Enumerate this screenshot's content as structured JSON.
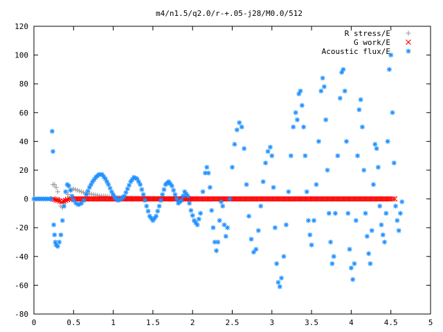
{
  "chart_data": {
    "type": "scatter",
    "title": "m4/n1.5/q2.0/r-+.05-j28/M0.0/512",
    "xlabel": "",
    "ylabel": "",
    "xlim": [
      0,
      5
    ],
    "ylim": [
      -80,
      120
    ],
    "x_ticks": [
      "0",
      "0.5",
      "1",
      "1.5",
      "2",
      "2.5",
      "3",
      "3.5",
      "4",
      "4.5",
      "5"
    ],
    "y_ticks": [
      "-80",
      "-60",
      "-40",
      "-20",
      "0",
      "20",
      "40",
      "60",
      "80",
      "100",
      "120"
    ],
    "grid": false,
    "legend_position": "top-right",
    "series": [
      {
        "name": "R stress/E",
        "marker": "+",
        "color": "#a0a0a0",
        "points": [
          [
            0.24,
            10
          ],
          [
            0.26,
            10
          ],
          [
            0.28,
            8
          ],
          [
            0.3,
            5
          ],
          [
            0.32,
            0
          ],
          [
            0.34,
            -5
          ],
          [
            0.36,
            -6
          ],
          [
            0.38,
            -3
          ],
          [
            0.4,
            0
          ],
          [
            0.43,
            3
          ],
          [
            0.46,
            6
          ],
          [
            0.5,
            7
          ],
          [
            0.55,
            6
          ],
          [
            0.6,
            5
          ],
          [
            0.65,
            4
          ],
          [
            0.7,
            3.5
          ],
          [
            0.75,
            3
          ],
          [
            0.8,
            2.5
          ],
          [
            0.85,
            2
          ],
          [
            0.9,
            2
          ],
          [
            0.95,
            1.5
          ],
          [
            1.0,
            1.5
          ],
          [
            1.05,
            1
          ],
          [
            1.1,
            1
          ],
          [
            1.2,
            0.8
          ],
          [
            1.3,
            0.6
          ],
          [
            1.4,
            0.5
          ],
          [
            1.5,
            0.4
          ],
          [
            1.6,
            0.3
          ],
          [
            1.7,
            0.3
          ],
          [
            1.8,
            0.2
          ],
          [
            1.9,
            0.2
          ],
          [
            2.0,
            0.1
          ]
        ]
      },
      {
        "name": "G work/E",
        "marker": "x",
        "color": "#ff0000",
        "points": [
          [
            0.24,
            0
          ],
          [
            0.3,
            -1
          ],
          [
            0.35,
            -2
          ],
          [
            0.4,
            -1
          ],
          [
            0.45,
            0
          ],
          [
            0.5,
            0
          ],
          [
            0.6,
            0
          ],
          [
            0.7,
            0
          ],
          [
            0.8,
            0
          ],
          [
            0.9,
            0
          ],
          [
            1.0,
            0
          ],
          [
            1.1,
            0
          ],
          [
            1.2,
            0
          ],
          [
            1.3,
            0
          ],
          [
            1.4,
            0
          ],
          [
            1.5,
            0
          ],
          [
            1.6,
            0
          ],
          [
            1.7,
            0
          ],
          [
            1.8,
            0
          ],
          [
            1.9,
            0
          ],
          [
            2.0,
            0
          ],
          [
            2.1,
            0
          ],
          [
            2.2,
            0
          ],
          [
            2.3,
            0
          ],
          [
            2.4,
            0
          ],
          [
            2.5,
            0
          ],
          [
            2.6,
            0
          ],
          [
            2.7,
            0
          ],
          [
            2.8,
            0
          ],
          [
            2.9,
            0
          ],
          [
            3.0,
            0
          ],
          [
            3.1,
            0
          ],
          [
            3.2,
            0
          ],
          [
            3.3,
            0
          ],
          [
            3.4,
            0
          ],
          [
            3.5,
            0
          ],
          [
            3.6,
            0
          ],
          [
            3.7,
            0
          ],
          [
            3.8,
            0
          ],
          [
            3.9,
            0
          ],
          [
            4.0,
            0
          ],
          [
            4.1,
            0
          ],
          [
            4.2,
            0
          ],
          [
            4.3,
            0
          ],
          [
            4.4,
            0
          ],
          [
            4.5,
            0
          ],
          [
            4.55,
            0
          ]
        ]
      },
      {
        "name": "Acoustic flux/E",
        "marker": "*",
        "color": "#1e90ff",
        "points": [
          [
            0.0,
            0
          ],
          [
            0.05,
            0
          ],
          [
            0.1,
            0
          ],
          [
            0.15,
            0
          ],
          [
            0.2,
            0
          ],
          [
            0.22,
            0
          ],
          [
            0.23,
            47
          ],
          [
            0.24,
            33
          ],
          [
            0.25,
            -18
          ],
          [
            0.26,
            -25
          ],
          [
            0.27,
            -30
          ],
          [
            0.28,
            -32
          ],
          [
            0.3,
            -33
          ],
          [
            0.32,
            -30
          ],
          [
            0.34,
            -25
          ],
          [
            0.36,
            -15
          ],
          [
            0.38,
            -5
          ],
          [
            0.4,
            5
          ],
          [
            0.42,
            10
          ],
          [
            0.44,
            9
          ],
          [
            0.46,
            6
          ],
          [
            0.48,
            2
          ],
          [
            0.5,
            -1
          ],
          [
            0.53,
            -3
          ],
          [
            0.56,
            -4
          ],
          [
            0.6,
            -3
          ],
          [
            0.63,
            -1
          ],
          [
            0.66,
            3
          ],
          [
            0.7,
            8
          ],
          [
            0.74,
            12
          ],
          [
            0.78,
            15
          ],
          [
            0.82,
            17
          ],
          [
            0.86,
            17
          ],
          [
            0.9,
            14
          ],
          [
            0.94,
            10
          ],
          [
            0.98,
            5
          ],
          [
            1.02,
            1
          ],
          [
            1.06,
            -1
          ],
          [
            1.1,
            0
          ],
          [
            1.14,
            2
          ],
          [
            1.18,
            7
          ],
          [
            1.22,
            12
          ],
          [
            1.26,
            15
          ],
          [
            1.3,
            14
          ],
          [
            1.34,
            10
          ],
          [
            1.38,
            3
          ],
          [
            1.42,
            -5
          ],
          [
            1.46,
            -12
          ],
          [
            1.5,
            -15
          ],
          [
            1.54,
            -12
          ],
          [
            1.58,
            -5
          ],
          [
            1.62,
            3
          ],
          [
            1.66,
            10
          ],
          [
            1.7,
            12
          ],
          [
            1.74,
            9
          ],
          [
            1.78,
            3
          ],
          [
            1.82,
            -3
          ],
          [
            1.86,
            -1
          ],
          [
            1.9,
            5
          ],
          [
            1.94,
            2
          ],
          [
            1.98,
            -8
          ],
          [
            2.02,
            -15
          ],
          [
            2.06,
            -18
          ],
          [
            2.1,
            -10
          ],
          [
            2.13,
            5
          ],
          [
            2.16,
            18
          ],
          [
            2.18,
            22
          ],
          [
            2.2,
            18
          ],
          [
            2.22,
            8
          ],
          [
            2.24,
            -8
          ],
          [
            2.26,
            -20
          ],
          [
            2.28,
            -30
          ],
          [
            2.3,
            -36
          ],
          [
            2.32,
            -30
          ],
          [
            2.34,
            -15
          ],
          [
            2.36,
            -2
          ],
          [
            2.38,
            -5
          ],
          [
            2.4,
            -18
          ],
          [
            2.42,
            -26
          ],
          [
            2.44,
            -20
          ],
          [
            2.47,
            0
          ],
          [
            2.5,
            22
          ],
          [
            2.53,
            38
          ],
          [
            2.56,
            48
          ],
          [
            2.59,
            53
          ],
          [
            2.62,
            50
          ],
          [
            2.65,
            35
          ],
          [
            2.68,
            10
          ],
          [
            2.71,
            -12
          ],
          [
            2.74,
            -28
          ],
          [
            2.77,
            -37
          ],
          [
            2.8,
            -35
          ],
          [
            2.83,
            -22
          ],
          [
            2.86,
            -5
          ],
          [
            2.89,
            12
          ],
          [
            2.92,
            25
          ],
          [
            2.95,
            33
          ],
          [
            2.98,
            36
          ],
          [
            3.0,
            30
          ],
          [
            3.02,
            8
          ],
          [
            3.04,
            -20
          ],
          [
            3.06,
            -45
          ],
          [
            3.08,
            -58
          ],
          [
            3.1,
            -61
          ],
          [
            3.12,
            -55
          ],
          [
            3.15,
            -40
          ],
          [
            3.18,
            -18
          ],
          [
            3.21,
            5
          ],
          [
            3.24,
            30
          ],
          [
            3.27,
            50
          ],
          [
            3.3,
            60
          ],
          [
            3.32,
            55
          ],
          [
            3.34,
            73
          ],
          [
            3.36,
            75
          ],
          [
            3.38,
            65
          ],
          [
            3.4,
            50
          ],
          [
            3.42,
            30
          ],
          [
            3.44,
            5
          ],
          [
            3.46,
            -15
          ],
          [
            3.48,
            -25
          ],
          [
            3.5,
            -32
          ],
          [
            3.53,
            -15
          ],
          [
            3.56,
            10
          ],
          [
            3.59,
            40
          ],
          [
            3.62,
            75
          ],
          [
            3.64,
            84
          ],
          [
            3.66,
            78
          ],
          [
            3.68,
            55
          ],
          [
            3.7,
            20
          ],
          [
            3.72,
            -10
          ],
          [
            3.74,
            -30
          ],
          [
            3.76,
            -45
          ],
          [
            3.78,
            -40
          ],
          [
            3.8,
            -10
          ],
          [
            3.83,
            30
          ],
          [
            3.86,
            70
          ],
          [
            3.88,
            88
          ],
          [
            3.9,
            90
          ],
          [
            3.92,
            75
          ],
          [
            3.94,
            40
          ],
          [
            3.96,
            -10
          ],
          [
            3.98,
            -35
          ],
          [
            4.0,
            -48
          ],
          [
            4.02,
            -56
          ],
          [
            4.04,
            -45
          ],
          [
            4.06,
            -15
          ],
          [
            4.08,
            30
          ],
          [
            4.1,
            62
          ],
          [
            4.12,
            69
          ],
          [
            4.14,
            50
          ],
          [
            4.16,
            20
          ],
          [
            4.18,
            -10
          ],
          [
            4.2,
            -26
          ],
          [
            4.22,
            -38
          ],
          [
            4.24,
            -45
          ],
          [
            4.26,
            -22
          ],
          [
            4.28,
            10
          ],
          [
            4.3,
            38
          ],
          [
            4.32,
            35
          ],
          [
            4.34,
            22
          ],
          [
            4.36,
            -5
          ],
          [
            4.38,
            -18
          ],
          [
            4.4,
            -25
          ],
          [
            4.42,
            -30
          ],
          [
            4.44,
            -10
          ],
          [
            4.46,
            40
          ],
          [
            4.48,
            90
          ],
          [
            4.5,
            100
          ],
          [
            4.52,
            60
          ],
          [
            4.54,
            25
          ],
          [
            4.56,
            -5
          ],
          [
            4.58,
            -15
          ],
          [
            4.6,
            -22
          ],
          [
            4.62,
            -10
          ],
          [
            4.64,
            -2
          ]
        ]
      }
    ]
  }
}
